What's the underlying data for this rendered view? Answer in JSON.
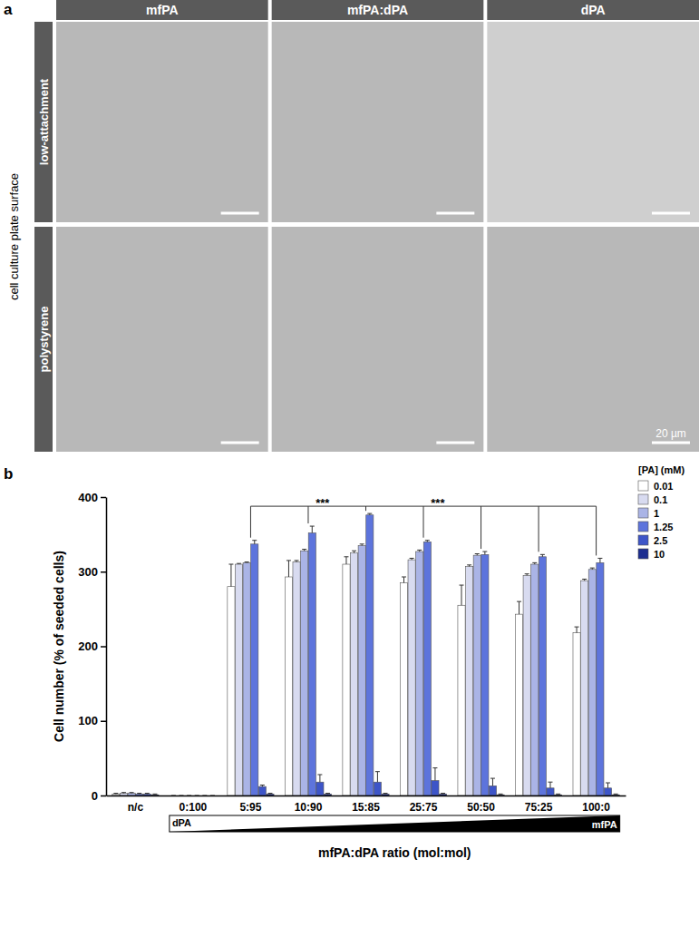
{
  "panel_labels": [
    "a",
    "b"
  ],
  "panel_a": {
    "columns": [
      "mfPA",
      "mfPA:dPA",
      "dPA"
    ],
    "rows": [
      "low-attachment",
      "polystyrene"
    ],
    "row_group_label": "cell culture plate surface",
    "scale_bar": "20 µm"
  },
  "chart_data": {
    "type": "bar",
    "categories": [
      "n/c",
      "0:100",
      "5:95",
      "10:90",
      "15:85",
      "25:75",
      "50:50",
      "75:25",
      "100:0"
    ],
    "series": [
      {
        "name": "0.01",
        "color": "#ffffff",
        "values": [
          2,
          0,
          280,
          293,
          310,
          285,
          255,
          243,
          218
        ],
        "errors": [
          1,
          0,
          30,
          22,
          10,
          8,
          27,
          17,
          8
        ]
      },
      {
        "name": "0.1",
        "color": "#d8dbf0",
        "values": [
          3,
          0,
          310,
          313,
          325,
          316,
          307,
          295,
          288
        ],
        "errors": [
          1,
          0,
          1,
          2,
          3,
          2,
          2,
          2,
          2
        ]
      },
      {
        "name": "1",
        "color": "#aab4e6",
        "values": [
          3,
          0,
          312,
          328,
          335,
          327,
          322,
          310,
          303
        ],
        "errors": [
          1,
          0,
          1,
          2,
          2,
          2,
          2,
          2,
          2
        ]
      },
      {
        "name": "1.25",
        "color": "#5d74dc",
        "values": [
          2,
          0,
          337,
          352,
          376,
          340,
          323,
          320,
          312
        ],
        "errors": [
          1,
          0,
          5,
          9,
          2,
          2,
          4,
          3,
          6
        ]
      },
      {
        "name": "2.5",
        "color": "#3d55c8",
        "values": [
          2,
          0,
          12,
          18,
          18,
          20,
          13,
          10,
          10
        ],
        "errors": [
          1,
          0,
          2,
          10,
          14,
          17,
          10,
          8,
          7
        ]
      },
      {
        "name": "10",
        "color": "#1c2d8f",
        "values": [
          1,
          0,
          2,
          2,
          2,
          2,
          1,
          1,
          1
        ],
        "errors": [
          1,
          0,
          1,
          1,
          1,
          1,
          1,
          1,
          1
        ]
      }
    ],
    "legend_title": "[PA] (mM)",
    "legend": "upper right",
    "y_label": "Cell number (% of seeded cells)",
    "x_label": "mfPA:dPA ratio (mol:mol)",
    "gradient_labels": {
      "left": "dPA",
      "right": "mfPA"
    },
    "annotations": [
      {
        "text": "***",
        "from": [
          "5:95",
          "10:90"
        ],
        "to": "15:85"
      },
      {
        "text": "***",
        "from": [
          "15:85"
        ],
        "to": "25:75 50:50 75:25 100:0"
      }
    ],
    "ylim": [
      0,
      400
    ],
    "yticks": [
      0,
      100,
      200,
      300,
      400
    ],
    "grid": false
  }
}
